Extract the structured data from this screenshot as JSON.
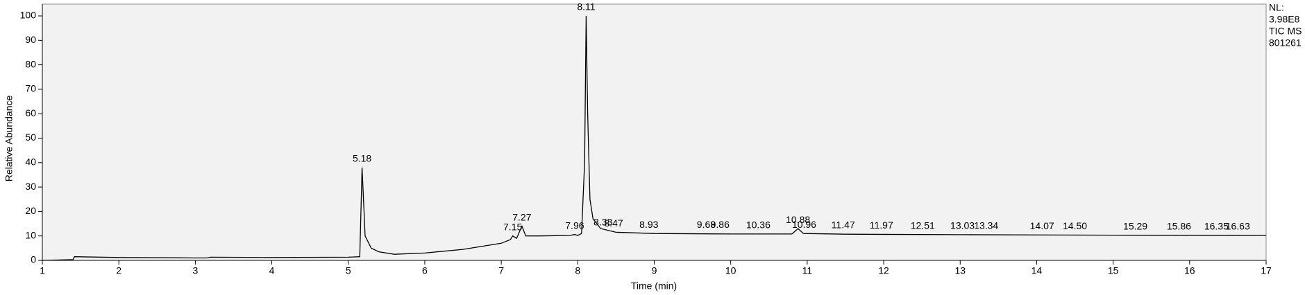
{
  "chart_data": {
    "type": "line",
    "xlabel": "Time (min)",
    "ylabel": "Relative Abundance",
    "info": [
      "NL:",
      "3.98E8",
      "TIC  MS",
      "801261"
    ],
    "xlim": [
      1,
      17
    ],
    "xticks": [
      1,
      2,
      3,
      4,
      5,
      6,
      7,
      8,
      9,
      10,
      11,
      12,
      13,
      14,
      15,
      16,
      17
    ],
    "ylim": [
      0,
      100
    ],
    "yticks": [
      0,
      10,
      20,
      30,
      40,
      50,
      60,
      70,
      80,
      90,
      100
    ],
    "series": [
      {
        "name": "TIC",
        "color": "#000000",
        "x": [
          1.0,
          1.4,
          1.42,
          2,
          3,
          3.15,
          3.2,
          4,
          5,
          5.15,
          5.18,
          5.22,
          5.3,
          5.4,
          5.6,
          6,
          6.5,
          7,
          7.12,
          7.15,
          7.2,
          7.27,
          7.32,
          7.5,
          7.9,
          7.96,
          8.0,
          8.05,
          8.09,
          8.11,
          8.13,
          8.16,
          8.2,
          8.3,
          8.5,
          9,
          10,
          10.8,
          10.88,
          10.95,
          11.5,
          13,
          15,
          17
        ],
        "values": [
          0,
          0.3,
          1.5,
          1.2,
          1.0,
          1.0,
          1.3,
          1.2,
          1.3,
          1.5,
          38,
          10,
          5,
          3.5,
          2.5,
          3,
          4.5,
          7,
          8.5,
          10,
          9,
          14,
          10,
          10,
          10.2,
          10.6,
          10.2,
          11,
          40,
          100,
          60,
          25,
          17,
          13,
          11.5,
          11,
          10.8,
          10.8,
          13,
          11,
          10.7,
          10.5,
          10.3,
          10.2
        ]
      }
    ],
    "peaks": {
      "x": [
        5.18,
        7.15,
        7.27,
        7.96,
        8.11,
        8.33,
        8.47,
        8.93,
        9.68,
        9.86,
        10.36,
        10.88,
        10.96,
        11.47,
        11.97,
        12.51,
        13.03,
        13.34,
        14.07,
        {
          "value": 14.5,
          "label": "14.50"
        },
        15.29,
        15.86,
        16.35,
        16.63
      ],
      "y": [
        38,
        10,
        14,
        10.6,
        100,
        12,
        11.5,
        11,
        11,
        11,
        10.8,
        13,
        11,
        10.8,
        10.7,
        10.6,
        10.5,
        10.5,
        10.4,
        10.4,
        10.3,
        10.3,
        10.2,
        10.2
      ]
    }
  }
}
